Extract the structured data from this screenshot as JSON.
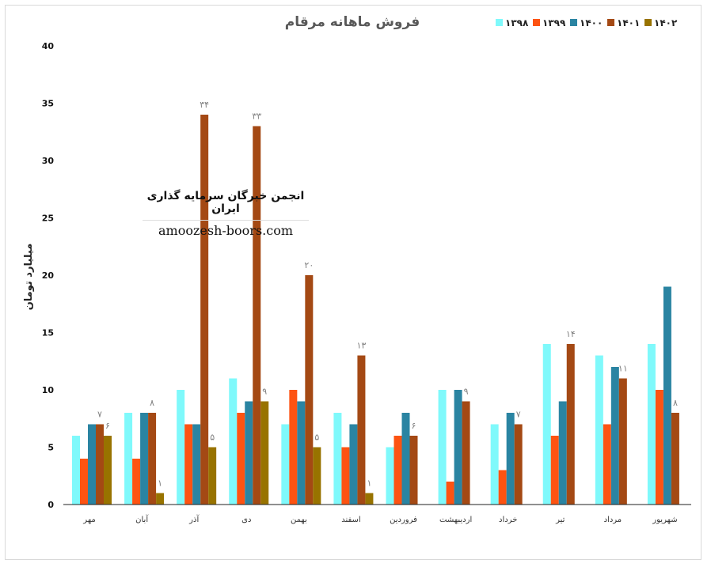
{
  "chart_data": {
    "type": "bar",
    "title": "فروش ماهانه مرقام",
    "ylabel": "میلیارد تومان",
    "xlabel": "",
    "ylim": [
      0,
      40
    ],
    "yticks": [
      "0",
      "5",
      "10",
      "15",
      "20",
      "25",
      "30",
      "35",
      "40"
    ],
    "grid": false,
    "legend_position": "top-right",
    "categories": [
      "مهر",
      "آبان",
      "آذر",
      "دی",
      "بهمن",
      "اسفند",
      "فروردین",
      "اردیبهشت",
      "خرداد",
      "تیر",
      "مرداد",
      "شهریور"
    ],
    "series": [
      {
        "name": "۱۳۹۸",
        "color": "#7ff9fb",
        "values": [
          6,
          8,
          10,
          11,
          7,
          8,
          5,
          10,
          7,
          14,
          13,
          14
        ]
      },
      {
        "name": "۱۳۹۹",
        "color": "#fd5312",
        "values": [
          4,
          4,
          7,
          8,
          10,
          5,
          6,
          2,
          3,
          6,
          7,
          10
        ]
      },
      {
        "name": "۱۴۰۰",
        "color": "#2a84a2",
        "values": [
          7,
          8,
          7,
          9,
          9,
          7,
          8,
          10,
          8,
          9,
          12,
          19
        ]
      },
      {
        "name": "۱۴۰۱",
        "color": "#a44914",
        "values": [
          7,
          8,
          34,
          33,
          20,
          13,
          6,
          9,
          7,
          14,
          11,
          8
        ]
      },
      {
        "name": "۱۴۰۲",
        "color": "#987300",
        "values": [
          6,
          1,
          5,
          9,
          5,
          1,
          null,
          null,
          null,
          null,
          null,
          null
        ]
      }
    ],
    "data_labels": [
      {
        "series": 3,
        "category": 0,
        "text": "۷"
      },
      {
        "series": 4,
        "category": 0,
        "text": "۶"
      },
      {
        "series": 3,
        "category": 1,
        "text": "۸"
      },
      {
        "series": 4,
        "category": 1,
        "text": "۱"
      },
      {
        "series": 3,
        "category": 2,
        "text": "۳۴"
      },
      {
        "series": 4,
        "category": 2,
        "text": "۵"
      },
      {
        "series": 3,
        "category": 3,
        "text": "۳۳"
      },
      {
        "series": 4,
        "category": 3,
        "text": "۹"
      },
      {
        "series": 3,
        "category": 4,
        "text": "۲۰"
      },
      {
        "series": 4,
        "category": 4,
        "text": "۵"
      },
      {
        "series": 3,
        "category": 5,
        "text": "۱۳"
      },
      {
        "series": 4,
        "category": 5,
        "text": "۱"
      },
      {
        "series": 3,
        "category": 6,
        "text": "۶"
      },
      {
        "series": 3,
        "category": 7,
        "text": "۹"
      },
      {
        "series": 3,
        "category": 8,
        "text": "۷"
      },
      {
        "series": 3,
        "category": 9,
        "text": "۱۴"
      },
      {
        "series": 3,
        "category": 10,
        "text": "۱۱"
      },
      {
        "series": 3,
        "category": 11,
        "text": "۸"
      }
    ]
  },
  "watermark": {
    "line1": "انجمن خبرگان سرمایه گذاری ایران",
    "line2": "amoozesh-boors.com"
  }
}
